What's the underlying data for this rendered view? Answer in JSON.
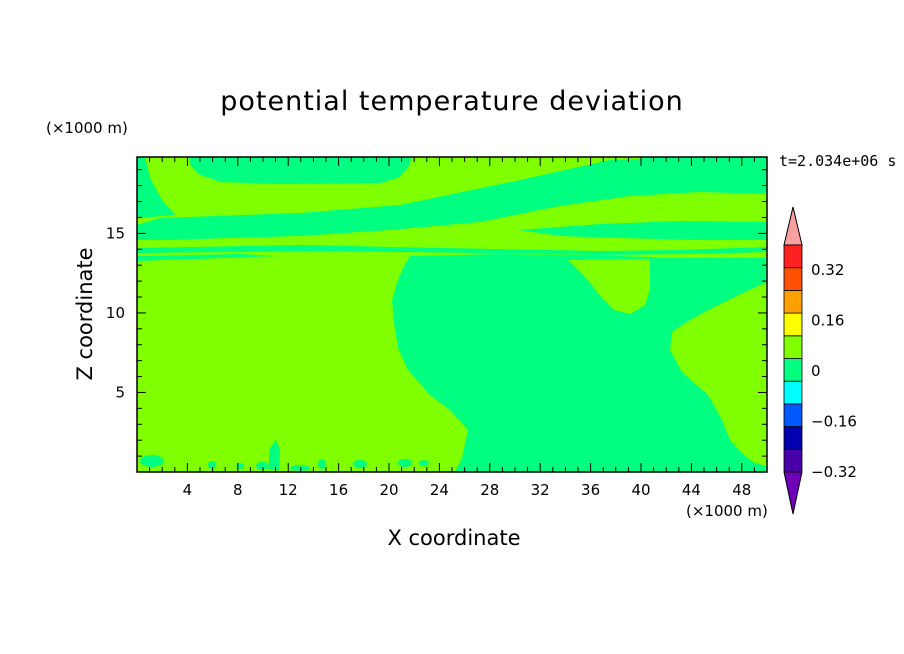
{
  "figure": {
    "title": "potential temperature deviation",
    "time_label": "t=2.034e+06 s",
    "colors": {
      "negative_zero_band": "#00ff80",
      "zero_positive_band": "#80ff00",
      "axis": "#000000"
    }
  },
  "chart_data": {
    "type": "heatmap",
    "title": "potential temperature deviation",
    "xlabel": "X coordinate",
    "ylabel": "Z coordinate",
    "x_unit": "(×1000 m)",
    "z_unit": "(×1000 m)",
    "xlim": [
      0,
      50
    ],
    "ylim": [
      0,
      19.8
    ],
    "x_ticks": [
      4,
      8,
      12,
      16,
      20,
      24,
      28,
      32,
      36,
      40,
      44,
      48
    ],
    "y_ticks": [
      5,
      10,
      15
    ],
    "colorbar": {
      "levels": [
        -0.32,
        -0.24,
        -0.16,
        -0.08,
        0,
        0.08,
        0.16,
        0.24,
        0.32,
        0.4
      ],
      "labels": [
        {
          "value": 0.32,
          "text": "0.32"
        },
        {
          "value": 0.16,
          "text": "0.16"
        },
        {
          "value": 0,
          "text": "0"
        },
        {
          "value": -0.16,
          "text": "−0.16"
        },
        {
          "value": -0.32,
          "text": "−0.32"
        }
      ],
      "colors": [
        "#4800a8",
        "#0000b0",
        "#0058ff",
        "#00ffff",
        "#00ff80",
        "#80ff00",
        "#ffff00",
        "#ffa000",
        "#ff5000",
        "#ff2020"
      ],
      "under_color": "#7000b8",
      "over_color": "#f8a0a0"
    },
    "fields": {
      "background_band": "0 to 0.08",
      "feature_band": "-0.08 to 0"
    }
  }
}
